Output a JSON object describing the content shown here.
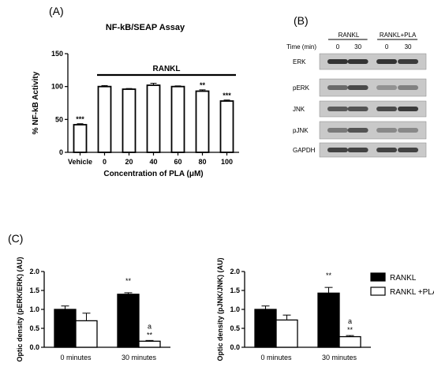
{
  "panels": {
    "a": "(A)",
    "b": "(B)",
    "c": "(C)"
  },
  "chart_data": [
    {
      "id": "A",
      "type": "bar",
      "title": "NF-kB/SEAP Assay",
      "xlabel": "Concentration of PLA (μM)",
      "ylabel": "% NF-kB Activity",
      "ylim": [
        0,
        150
      ],
      "yticks": [
        "0",
        "50",
        "100",
        "150"
      ],
      "categories": [
        "Vehicle",
        "0",
        "20",
        "40",
        "60",
        "80",
        "100"
      ],
      "values": [
        42,
        100,
        96,
        102,
        100,
        93,
        78
      ],
      "errors": [
        1.5,
        1.5,
        1,
        3,
        1,
        2,
        1.5
      ],
      "significance": [
        "***",
        "",
        "",
        "",
        "",
        "**",
        "***"
      ],
      "bracket_label": "RANKL",
      "grid": false,
      "legend": "none"
    },
    {
      "id": "C1",
      "type": "bar",
      "ylabel": "Optic density (pERK/ERK) (AU)",
      "ylim": [
        0,
        2.0
      ],
      "yticks": [
        "0.0",
        "0.5",
        "1.0",
        "1.5",
        "2.0"
      ],
      "categories": [
        "0 minutes",
        "30 minutes"
      ],
      "series": [
        {
          "name": "RANKL",
          "values": [
            1.0,
            1.4
          ],
          "errors": [
            0.09,
            0.04
          ],
          "annotations": [
            "",
            "**"
          ]
        },
        {
          "name": "RANKL +PLA",
          "values": [
            0.7,
            0.16
          ],
          "errors": [
            0.2,
            0.02
          ],
          "annotations": [
            "",
            "**"
          ],
          "letters": [
            "",
            "a"
          ]
        }
      ],
      "legend": "none"
    },
    {
      "id": "C2",
      "type": "bar",
      "ylabel": "Optic density (pJNK/JNK) (AU)",
      "ylim": [
        0,
        2.0
      ],
      "yticks": [
        "0.0",
        "0.5",
        "1.0",
        "1.5",
        "2.0"
      ],
      "categories": [
        "0 minutes",
        "30 minutes"
      ],
      "series": [
        {
          "name": "RANKL",
          "values": [
            1.0,
            1.43
          ],
          "errors": [
            0.09,
            0.15
          ],
          "annotations": [
            "",
            "**"
          ]
        },
        {
          "name": "RANKL +PLA",
          "values": [
            0.72,
            0.28
          ],
          "errors": [
            0.13,
            0.03
          ],
          "annotations": [
            "",
            "**"
          ],
          "letters": [
            "",
            "a"
          ]
        }
      ],
      "legend": "right"
    }
  ],
  "blot": {
    "group_labels": [
      "RANKL",
      "RANKL+PLA"
    ],
    "time_label": "Time (min)",
    "times": [
      "0",
      "30",
      "0",
      "30"
    ],
    "rows": [
      "ERK",
      "pERK",
      "JNK",
      "pJNK",
      "GAPDH"
    ]
  },
  "colors": {
    "rankl": "#000000",
    "rankl_pla": "#ffffff",
    "blot_bg": "#c9c9c9",
    "band": "#2b2b2b"
  }
}
